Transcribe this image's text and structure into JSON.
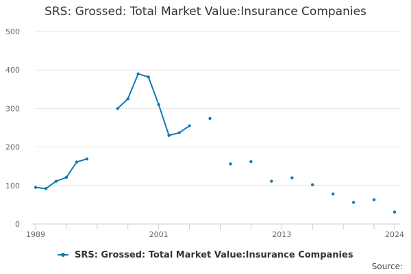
{
  "chart_data": {
    "type": "line",
    "title": "SRS: Grossed: Total Market Value:Insurance Companies",
    "xlabel": "",
    "ylabel": "",
    "xlim": [
      1989,
      2024
    ],
    "ylim": [
      0,
      500
    ],
    "x_ticks": [
      "1989",
      "2001",
      "2013",
      "2024"
    ],
    "y_ticks": [
      "0",
      "100",
      "200",
      "300",
      "400",
      "500"
    ],
    "grid": true,
    "legend_position": "bottom",
    "series": [
      {
        "name": "SRS: Grossed: Total Market Value:Insurance Companies",
        "color": "#0e7ab6",
        "x": [
          1989,
          1990,
          1991,
          1992,
          1993,
          1994,
          1995,
          1996,
          1997,
          1998,
          1999,
          2000,
          2001,
          2002,
          2003,
          2004,
          2005,
          2006,
          2007,
          2008,
          2009,
          2010,
          2011,
          2012,
          2013,
          2014,
          2015,
          2016,
          2017,
          2018,
          2019,
          2020,
          2021,
          2022,
          2023,
          2024
        ],
        "values": [
          95,
          92,
          111,
          121,
          161,
          169,
          null,
          null,
          300,
          325,
          390,
          382,
          310,
          230,
          237,
          255,
          null,
          274,
          null,
          156,
          null,
          162,
          null,
          111,
          null,
          120,
          null,
          102,
          null,
          78,
          null,
          56,
          null,
          63,
          null,
          31
        ]
      }
    ]
  },
  "legend": {
    "label": "SRS: Grossed: Total Market Value:Insurance Companies"
  },
  "source": {
    "label": "Source:"
  }
}
